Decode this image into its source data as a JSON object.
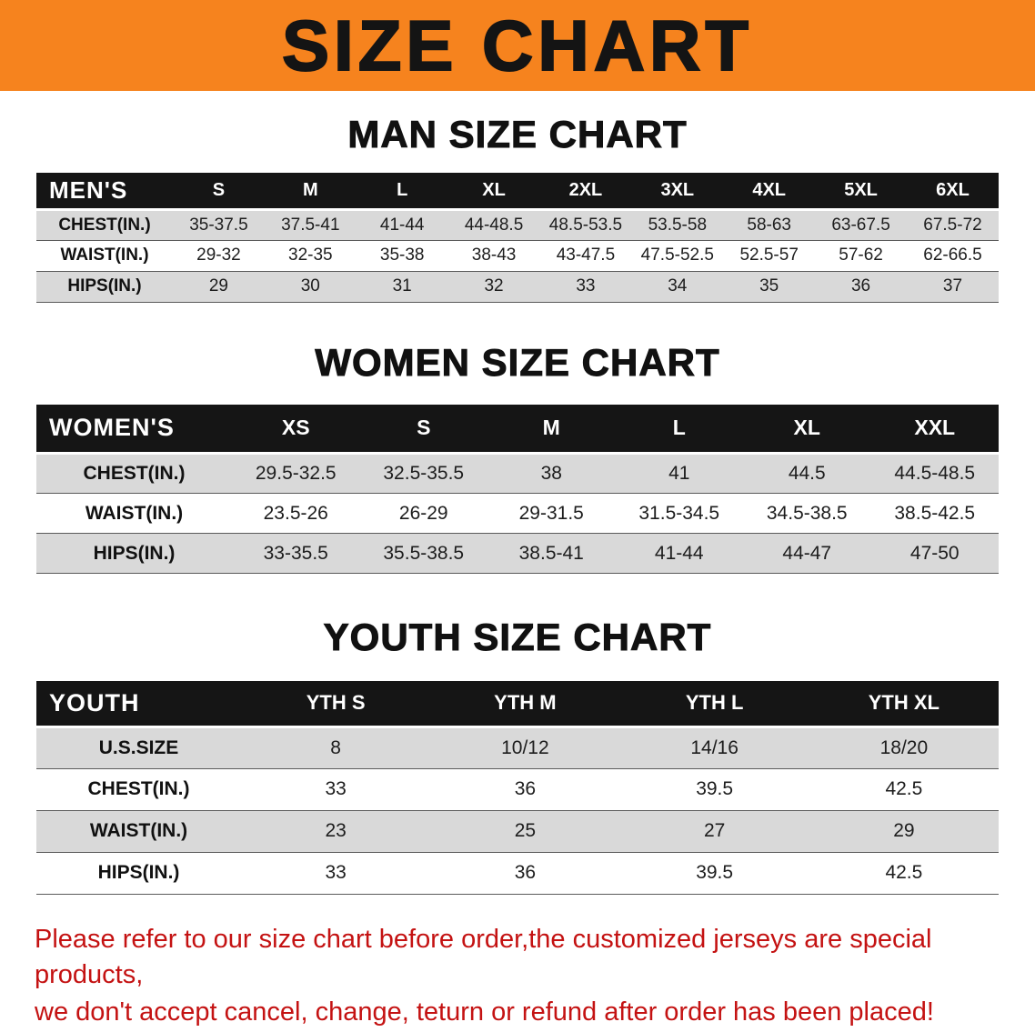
{
  "banner": {
    "title": "SIZE CHART"
  },
  "colors": {
    "banner-bg": "#F6831E",
    "banner-text": "#141414",
    "header-bg": "#151515",
    "header-text": "#FFFFFF",
    "row-shade": "#D9D9D9",
    "disclaimer-text": "#C41212"
  },
  "men": {
    "heading": "MAN SIZE CHART",
    "table": {
      "label": "MEN'S",
      "columns": [
        "S",
        "M",
        "L",
        "XL",
        "2XL",
        "3XL",
        "4XL",
        "5XL",
        "6XL"
      ],
      "rows": [
        {
          "label": "CHEST(IN.)",
          "values": [
            "35-37.5",
            "37.5-41",
            "41-44",
            "44-48.5",
            "48.5-53.5",
            "53.5-58",
            "58-63",
            "63-67.5",
            "67.5-72"
          ]
        },
        {
          "label": "WAIST(IN.)",
          "values": [
            "29-32",
            "32-35",
            "35-38",
            "38-43",
            "43-47.5",
            "47.5-52.5",
            "52.5-57",
            "57-62",
            "62-66.5"
          ]
        },
        {
          "label": "HIPS(IN.)",
          "values": [
            "29",
            "30",
            "31",
            "32",
            "33",
            "34",
            "35",
            "36",
            "37"
          ]
        }
      ]
    }
  },
  "women": {
    "heading": "WOMEN SIZE CHART",
    "table": {
      "label": "WOMEN'S",
      "columns": [
        "XS",
        "S",
        "M",
        "L",
        "XL",
        "XXL"
      ],
      "rows": [
        {
          "label": "CHEST(IN.)",
          "values": [
            "29.5-32.5",
            "32.5-35.5",
            "38",
            "41",
            "44.5",
            "44.5-48.5"
          ]
        },
        {
          "label": "WAIST(IN.)",
          "values": [
            "23.5-26",
            "26-29",
            "29-31.5",
            "31.5-34.5",
            "34.5-38.5",
            "38.5-42.5"
          ]
        },
        {
          "label": "HIPS(IN.)",
          "values": [
            "33-35.5",
            "35.5-38.5",
            "38.5-41",
            "41-44",
            "44-47",
            "47-50"
          ]
        }
      ]
    }
  },
  "youth": {
    "heading": "YOUTH SIZE CHART",
    "table": {
      "label": "YOUTH",
      "columns": [
        "YTH S",
        "YTH M",
        "YTH L",
        "YTH XL"
      ],
      "rows": [
        {
          "label": "U.S.SIZE",
          "values": [
            "8",
            "10/12",
            "14/16",
            "18/20"
          ]
        },
        {
          "label": "CHEST(IN.)",
          "values": [
            "33",
            "36",
            "39.5",
            "42.5"
          ]
        },
        {
          "label": "WAIST(IN.)",
          "values": [
            "23",
            "25",
            "27",
            "29"
          ]
        },
        {
          "label": "HIPS(IN.)",
          "values": [
            "33",
            "36",
            "39.5",
            "42.5"
          ]
        }
      ]
    }
  },
  "disclaimer": {
    "line1": "Please refer to our size chart before order,the customized jerseys are special products,",
    "line2": "we don't accept cancel, change, teturn or refund after order has been placed!"
  }
}
